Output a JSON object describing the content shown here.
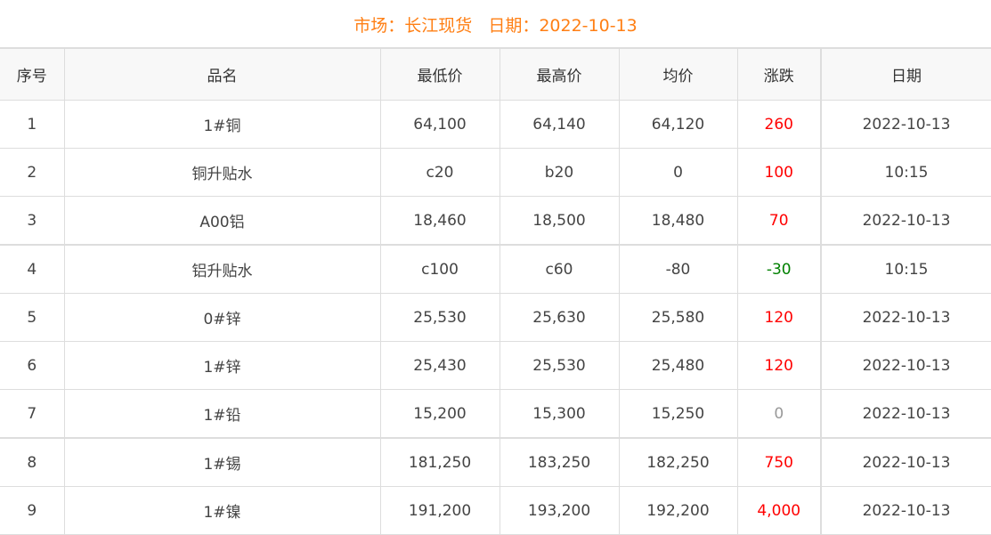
{
  "header": {
    "market_label": "市场：长江现货",
    "date_label": "日期：2022-10-13"
  },
  "colors": {
    "up": "#ff0000",
    "down": "#008000",
    "flat": "#999999",
    "title": "#ff7f14"
  },
  "columns": [
    "序号",
    "品名",
    "最低价",
    "最高价",
    "均价",
    "涨跌",
    "日期"
  ],
  "rows": [
    {
      "no": "1",
      "name": "1#铜",
      "low": "64,100",
      "high": "64,140",
      "avg": "64,120",
      "change": "260",
      "dir": "up",
      "date": "2022-10-13"
    },
    {
      "no": "2",
      "name": "铜升贴水",
      "low": "c20",
      "high": "b20",
      "avg": "0",
      "change": "100",
      "dir": "up",
      "date": "10:15"
    },
    {
      "no": "3",
      "name": "A00铝",
      "low": "18,460",
      "high": "18,500",
      "avg": "18,480",
      "change": "70",
      "dir": "up",
      "date": "2022-10-13"
    },
    {
      "no": "4",
      "name": "铝升贴水",
      "low": "c100",
      "high": "c60",
      "avg": "-80",
      "change": "-30",
      "dir": "down",
      "date": "10:15"
    },
    {
      "no": "5",
      "name": "0#锌",
      "low": "25,530",
      "high": "25,630",
      "avg": "25,580",
      "change": "120",
      "dir": "up",
      "date": "2022-10-13"
    },
    {
      "no": "6",
      "name": "1#锌",
      "low": "25,430",
      "high": "25,530",
      "avg": "25,480",
      "change": "120",
      "dir": "up",
      "date": "2022-10-13"
    },
    {
      "no": "7",
      "name": "1#铅",
      "low": "15,200",
      "high": "15,300",
      "avg": "15,250",
      "change": "0",
      "dir": "flat",
      "date": "2022-10-13"
    },
    {
      "no": "8",
      "name": "1#锡",
      "low": "181,250",
      "high": "183,250",
      "avg": "182,250",
      "change": "750",
      "dir": "up",
      "date": "2022-10-13"
    },
    {
      "no": "9",
      "name": "1#镍",
      "low": "191,200",
      "high": "193,200",
      "avg": "192,200",
      "change": "4,000",
      "dir": "up",
      "date": "2022-10-13"
    }
  ]
}
